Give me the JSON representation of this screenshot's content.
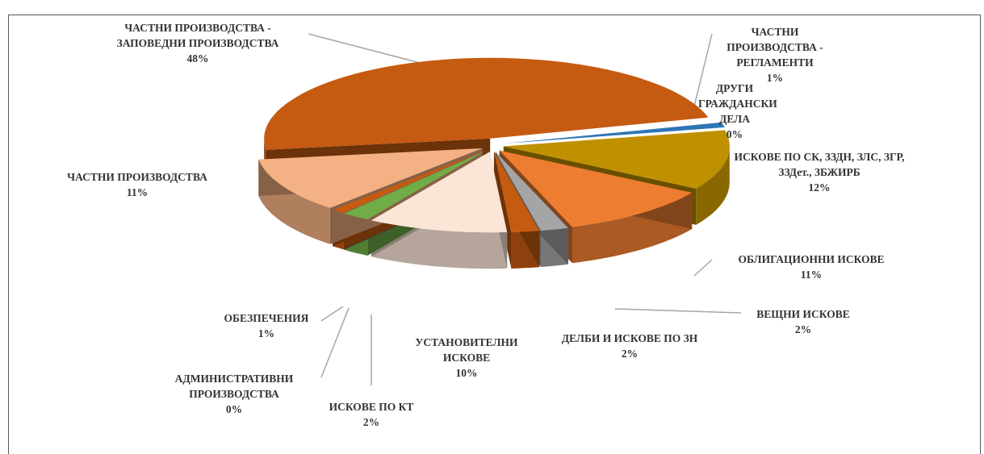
{
  "chart_data": {
    "type": "pie",
    "categories": [
      "ЧАСТНИ ПРОИЗВОДСТВА - ЗАПОВЕДНИ ПРОИЗВОДСТВА",
      "ЧАСТНИ ПРОИЗВОДСТВА - РЕГЛАМЕНТИ",
      "ДРУГИ ГРАЖДАНСКИ ДЕЛА",
      "ИСКОВЕ ПО СК, ЗЗДН, ЗЛС, ЗГР, ЗЗДет., ЗБЖИРБ",
      "ОБЛИГАЦИОННИ ИСКОВЕ",
      "ВЕЩНИ ИСКОВЕ",
      "ДЕЛБИ И ИСКОВЕ ПО ЗН",
      "УСТАНОВИТЕЛНИ ИСКОВЕ",
      "ИСКОВЕ ПО КТ",
      "АДМИНИСТРАТИВНИ ПРОИЗВОДСТВА",
      "ОБЕЗПЕЧЕНИЯ",
      "ЧАСТНИ ПРОИЗВОДСТВА"
    ],
    "values": [
      48,
      1,
      0,
      12,
      11,
      2,
      2,
      10,
      2,
      0,
      1,
      11
    ],
    "value_labels": [
      "48%",
      "1%",
      "0%",
      "12%",
      "11%",
      "2%",
      "2%",
      "10%",
      "2%",
      "0%",
      "1%",
      "11%"
    ],
    "colors": [
      "#c55a11",
      "#2e75b6",
      "#a5a5a5",
      "#bf9000",
      "#ed7d31",
      "#a5a5a5",
      "#c55a11",
      "#fbe5d6",
      "#70ad47",
      "#2e75b6",
      "#c55a11",
      "#f4b183"
    ]
  }
}
